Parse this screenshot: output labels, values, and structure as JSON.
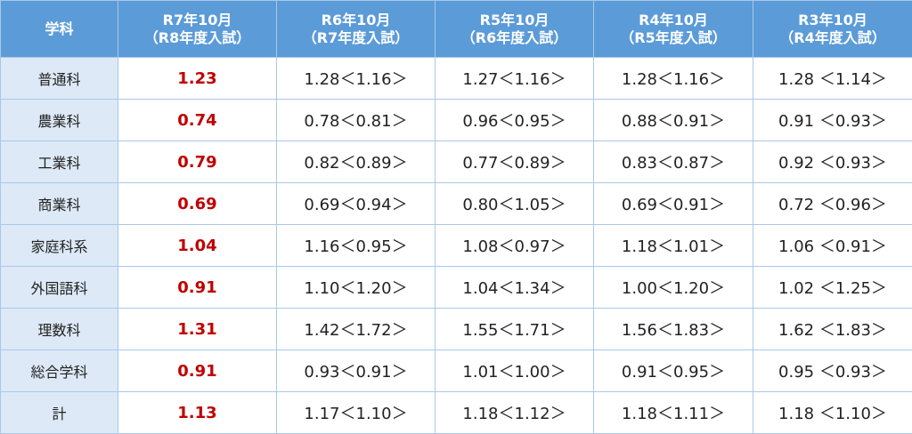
{
  "table": {
    "header": [
      [
        "学科"
      ],
      [
        "R7年10月",
        "（R8年度入試）"
      ],
      [
        "R6年10月",
        "（R7年度入試）"
      ],
      [
        "R5年10月",
        "（R6年度入試）"
      ],
      [
        "R4年10月",
        "（R5年度入試）"
      ],
      [
        "R3年10月",
        "（R4年度入試）"
      ]
    ],
    "rows": [
      [
        "普通科",
        "1.23",
        "1.28＜1.16＞",
        "1.27＜1.16＞",
        "1.28＜1.16＞",
        "1.28 ＜1.14＞"
      ],
      [
        "農業科",
        "0.74",
        "0.78＜0.81＞",
        "0.96＜0.95＞",
        "0.88＜0.91＞",
        "0.91 ＜0.93＞"
      ],
      [
        "工業科",
        "0.79",
        "0.82＜0.89＞",
        "0.77＜0.89＞",
        "0.83＜0.87＞",
        "0.92 ＜0.93＞"
      ],
      [
        "商業科",
        "0.69",
        "0.69＜0.94＞",
        "0.80＜1.05＞",
        "0.69＜0.91＞",
        "0.72 ＜0.96＞"
      ],
      [
        "家庭科系",
        "1.04",
        "1.16＜0.95＞",
        "1.08＜0.97＞",
        "1.18＜1.01＞",
        "1.06 ＜0.91＞"
      ],
      [
        "外国語科",
        "0.91",
        "1.10＜1.20＞",
        "1.04＜1.34＞",
        "1.00＜1.20＞",
        "1.02 ＜1.25＞"
      ],
      [
        "理数科",
        "1.31",
        "1.42＜1.72＞",
        "1.55＜1.71＞",
        "1.56＜1.83＞",
        "1.62 ＜1.83＞"
      ],
      [
        "総合学科",
        "0.91",
        "0.93＜0.91＞",
        "1.01＜1.00＞",
        "0.91＜0.95＞",
        "0.95 ＜0.93＞"
      ],
      [
        "計",
        "1.13",
        "1.17＜1.10＞",
        "1.18＜1.12＞",
        "1.18＜1.11＞",
        "1.18 ＜1.10＞"
      ]
    ]
  }
}
